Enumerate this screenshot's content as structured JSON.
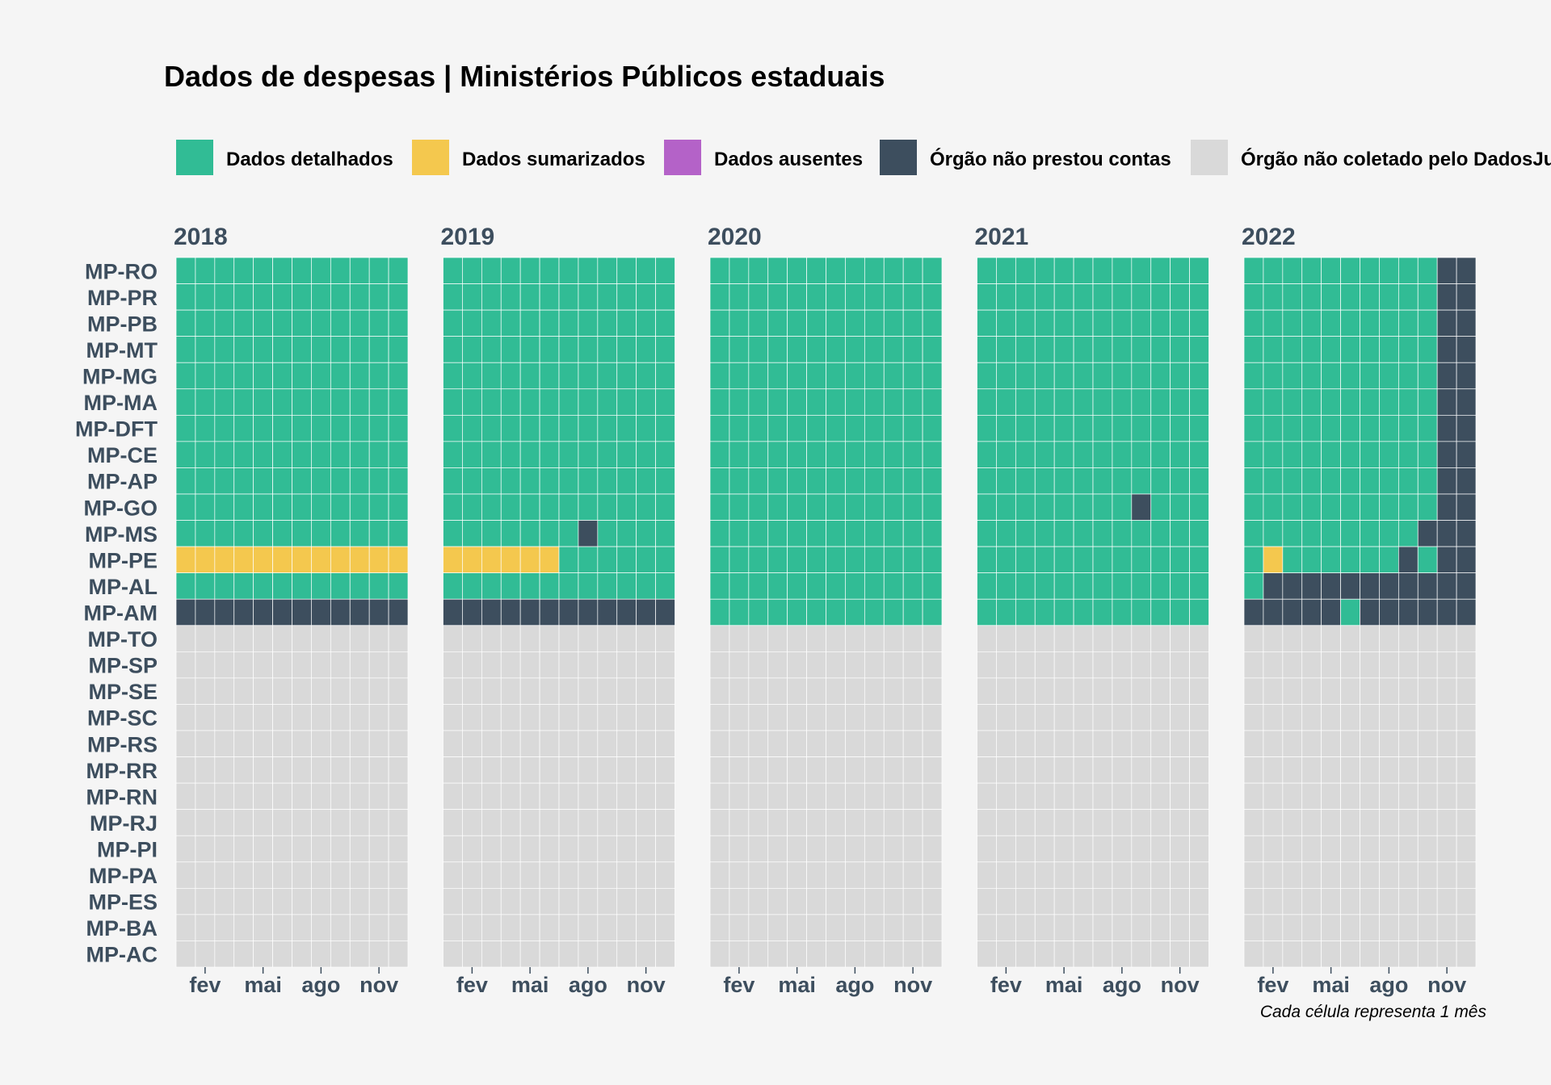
{
  "chart_data": {
    "type": "heatmap",
    "title": "Dados de despesas | Ministérios Públicos estaduais",
    "caption": "Cada célula representa 1 mês",
    "legend_position": "top",
    "legend": [
      {
        "key": "D",
        "label": "Dados detalhados",
        "color": "#31bc95"
      },
      {
        "key": "S",
        "label": "Dados sumarizados",
        "color": "#f4c84e"
      },
      {
        "key": "A",
        "label": "Dados ausentes",
        "color": "#b462c8"
      },
      {
        "key": "N",
        "label": "Órgão não prestou contas",
        "color": "#3d4e5e"
      },
      {
        "key": "X",
        "label": "Órgão não coletado pelo DadosJusBr",
        "color": "#d9d9d9"
      }
    ],
    "x_tick_labels": [
      "fev",
      "mai",
      "ago",
      "nov"
    ],
    "x_tick_months": [
      2,
      5,
      8,
      11
    ],
    "rows": [
      "MP-RO",
      "MP-PR",
      "MP-PB",
      "MP-MT",
      "MP-MG",
      "MP-MA",
      "MP-DFT",
      "MP-CE",
      "MP-AP",
      "MP-GO",
      "MP-MS",
      "MP-PE",
      "MP-AL",
      "MP-AM",
      "MP-TO",
      "MP-SP",
      "MP-SE",
      "MP-SC",
      "MP-RS",
      "MP-RR",
      "MP-RN",
      "MP-RJ",
      "MP-PI",
      "MP-PA",
      "MP-ES",
      "MP-BA",
      "MP-AC"
    ],
    "facets": [
      {
        "year": "2018",
        "cells": {
          "MP-RO": "DDDDDDDDDDDD",
          "MP-PR": "DDDDDDDDDDDD",
          "MP-PB": "DDDDDDDDDDDD",
          "MP-MT": "DDDDDDDDDDDD",
          "MP-MG": "DDDDDDDDDDDD",
          "MP-MA": "DDDDDDDDDDDD",
          "MP-DFT": "DDDDDDDDDDDD",
          "MP-CE": "DDDDDDDDDDDD",
          "MP-AP": "DDDDDDDDDDDD",
          "MP-GO": "DDDDDDDDDDDD",
          "MP-MS": "DDDDDDDDDDDD",
          "MP-PE": "SSSSSSSSSSSS",
          "MP-AL": "DDDDDDDDDDDD",
          "MP-AM": "NNNNNNNNNNNN"
        }
      },
      {
        "year": "2019",
        "cells": {
          "MP-RO": "DDDDDDDDDDDD",
          "MP-PR": "DDDDDDDDDDDD",
          "MP-PB": "DDDDDDDDDDDD",
          "MP-MT": "DDDDDDDDDDDD",
          "MP-MG": "DDDDDDDDDDDD",
          "MP-MA": "DDDDDDDDDDDD",
          "MP-DFT": "DDDDDDDDDDDD",
          "MP-CE": "DDDDDDDDDDDD",
          "MP-AP": "DDDDDDDDDDDD",
          "MP-GO": "DDDDDDDDDDDD",
          "MP-MS": "DDDDDDDNDDDD",
          "MP-PE": "SSSSSSDDDDDD",
          "MP-AL": "DDDDDDDDDDDD",
          "MP-AM": "NNNNNNNNNNNN"
        }
      },
      {
        "year": "2020",
        "cells": {
          "MP-RO": "DDDDDDDDDDDD",
          "MP-PR": "DDDDDDDDDDDD",
          "MP-PB": "DDDDDDDDDDDD",
          "MP-MT": "DDDDDDDDDDDD",
          "MP-MG": "DDDDDDDDDDDD",
          "MP-MA": "DDDDDDDDDDDD",
          "MP-DFT": "DDDDDDDDDDDD",
          "MP-CE": "DDDDDDDDDDDD",
          "MP-AP": "DDDDDDDDDDDD",
          "MP-GO": "DDDDDDDDDDDD",
          "MP-MS": "DDDDDDDDDDDD",
          "MP-PE": "DDDDDDDDDDDD",
          "MP-AL": "DDDDDDDDDDDD",
          "MP-AM": "DDDDDDDDDDDD"
        }
      },
      {
        "year": "2021",
        "cells": {
          "MP-RO": "DDDDDDDDDDDD",
          "MP-PR": "DDDDDDDDDDDD",
          "MP-PB": "DDDDDDDDDDDD",
          "MP-MT": "DDDDDDDDDDDD",
          "MP-MG": "DDDDDDDDDDDD",
          "MP-MA": "DDDDDDDDDDDD",
          "MP-DFT": "DDDDDDDDDDDD",
          "MP-CE": "DDDDDDDDDDDD",
          "MP-AP": "DDDDDDDDDDDD",
          "MP-GO": "DDDDDDDDNDDD",
          "MP-MS": "DDDDDDDDDDDD",
          "MP-PE": "DDDDDDDDDDDD",
          "MP-AL": "DDDDDDDDDDDD",
          "MP-AM": "DDDDDDDDDDDD"
        }
      },
      {
        "year": "2022",
        "cells": {
          "MP-RO": "DDDDDDDDDDNN",
          "MP-PR": "DDDDDDDDDDNN",
          "MP-PB": "DDDDDDDDDDNN",
          "MP-MT": "DDDDDDDDDDNN",
          "MP-MG": "DDDDDDDDDDNN",
          "MP-MA": "DDDDDDDDDDNN",
          "MP-DFT": "DDDDDDDDDDNN",
          "MP-CE": "DDDDDDDDDDNN",
          "MP-AP": "DDDDDDDDDDNN",
          "MP-GO": "DDDDDDDDDDNN",
          "MP-MS": "DDDDDDDDDNNN",
          "MP-PE": "DSDDDDDDNDNN",
          "MP-AL": "DNNNNNNNNNNN",
          "MP-AM": "NNNNNDNNNNNN"
        }
      }
    ],
    "default_state": "X"
  }
}
